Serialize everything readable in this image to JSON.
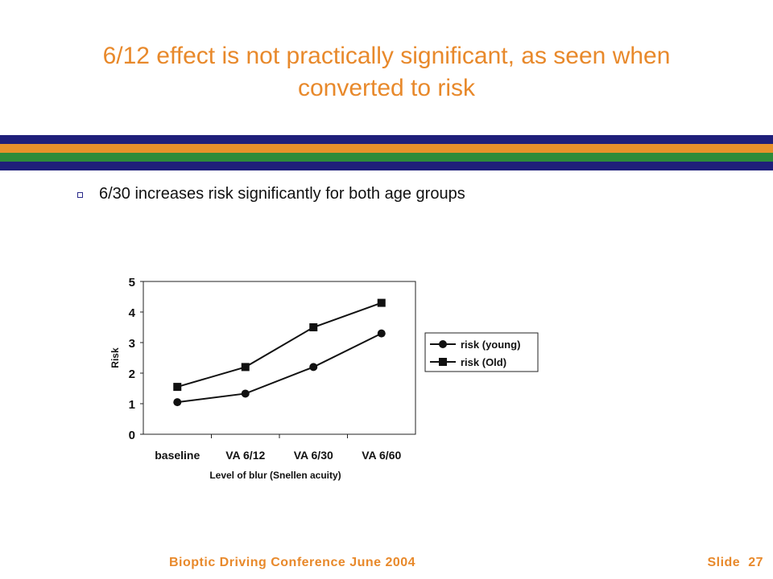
{
  "slide": {
    "title": "6/12 effect is not practically significant, as seen when converted to risk",
    "bullet": "6/30 increases risk significantly for both age groups",
    "footer_left": "Bioptic Driving Conference June 2004",
    "footer_slide_label": "Slide",
    "footer_slide_number": "27",
    "stripe_colors": [
      "#1f1f7a",
      "#e8912b",
      "#2e8b3a",
      "#1f1f7a"
    ],
    "accent_color": "#e8892b"
  },
  "chart_data": {
    "type": "line",
    "categories": [
      "baseline",
      "VA 6/12",
      "VA 6/30",
      "VA 6/60"
    ],
    "series": [
      {
        "name": "risk (young)",
        "values": [
          1.05,
          1.33,
          2.2,
          3.3
        ],
        "marker": "circle"
      },
      {
        "name": "risk (Old)",
        "values": [
          1.55,
          2.2,
          3.5,
          4.3
        ],
        "marker": "square"
      }
    ],
    "title": "",
    "xlabel": "Level of blur (Snellen acuity)",
    "ylabel": "Risk",
    "ylim": [
      0,
      5
    ],
    "yticks": [
      "0",
      "1",
      "2",
      "3",
      "4",
      "5"
    ],
    "grid": false,
    "legend_position": "right"
  }
}
